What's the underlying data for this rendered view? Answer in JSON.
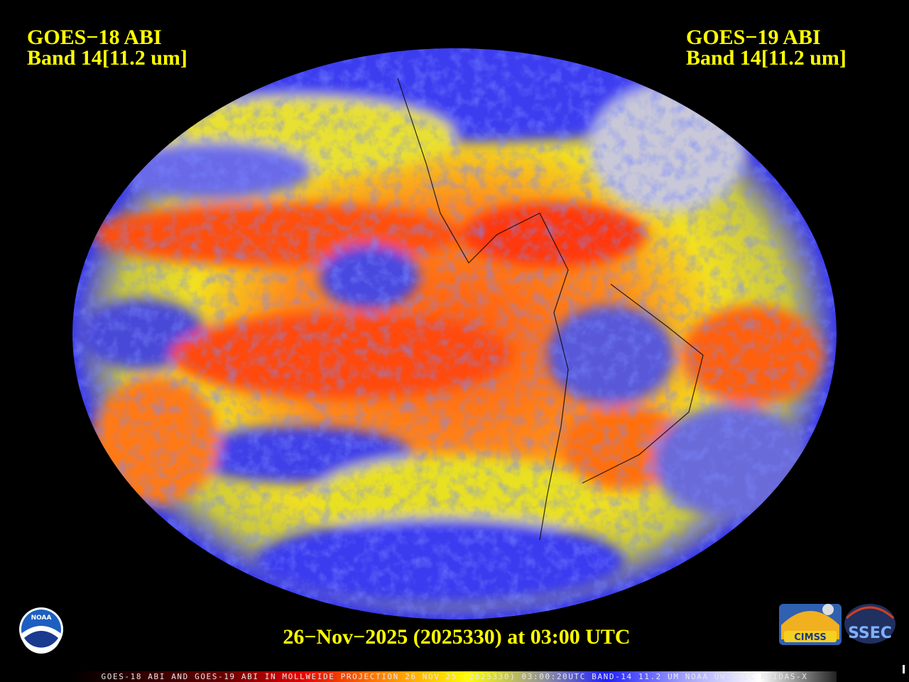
{
  "header": {
    "left": {
      "satellite": "GOES−18 ABI",
      "band": "Band 14[11.2 um]"
    },
    "right": {
      "satellite": "GOES−19 ABI",
      "band": "Band 14[11.2 um]"
    }
  },
  "timestamp": "26−Nov−2025 (2025330) at 03:00 UTC",
  "footer_caption": "GOES-18 ABI AND GOES-19 ABI IN MOLLWEIDE PROJECTION 26 NOV 25 (2025330) 03:00:20UTC BAND-14 11.2 UM NOAA UW-SSEC MCIDAS-X",
  "logos": {
    "noaa": "NOAA",
    "cimss": "CIMSS",
    "ssec": "SSEC"
  }
}
